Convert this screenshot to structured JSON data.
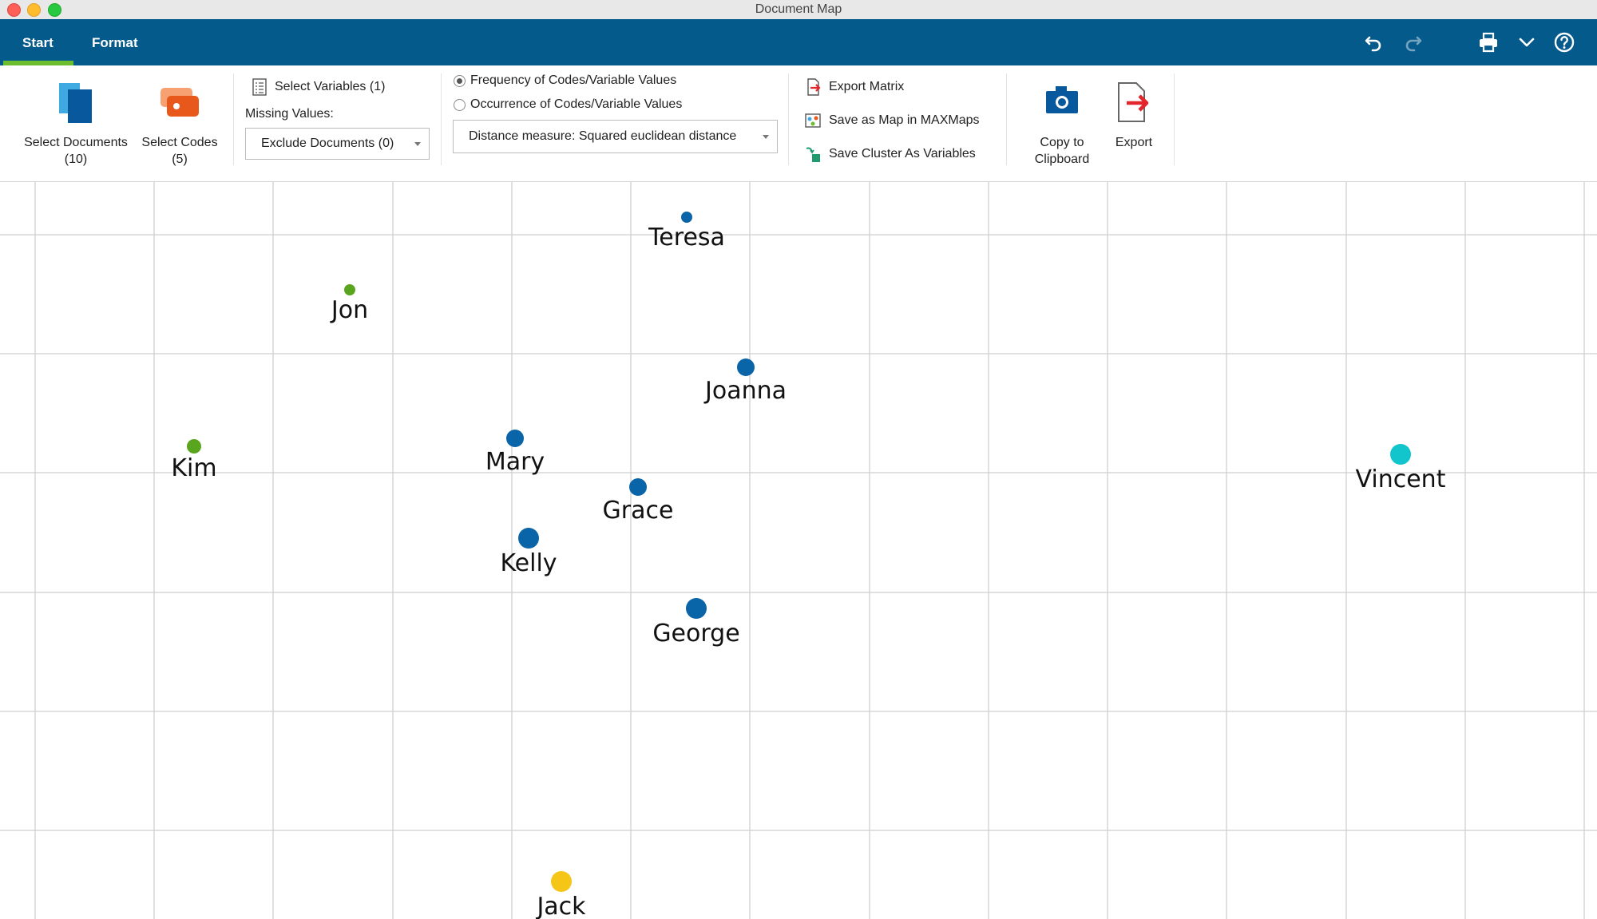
{
  "window": {
    "title": "Document Map"
  },
  "tabs": [
    {
      "label": "Start",
      "active": true
    },
    {
      "label": "Format",
      "active": false
    }
  ],
  "toolbar_icons": [
    "undo-icon",
    "redo-icon",
    "print-icon",
    "chevron-down-icon",
    "help-icon"
  ],
  "ribbon": {
    "select_documents": {
      "label": "Select Documents",
      "count": "(10)"
    },
    "select_codes": {
      "label": "Select Codes",
      "count": "(5)"
    },
    "select_variables": {
      "label": "Select Variables (1)"
    },
    "missing_values": {
      "label": "Missing Values:",
      "selected": "Exclude Documents (0)"
    },
    "radio_frequency": {
      "label": "Frequency of Codes/Variable Values",
      "checked": true
    },
    "radio_occurrence": {
      "label": "Occurrence of Codes/Variable Values",
      "checked": false
    },
    "distance_measure": {
      "selected": "Distance measure: Squared euclidean distance"
    },
    "export_matrix": {
      "label": "Export Matrix"
    },
    "save_map": {
      "label": "Save as Map in MAXMaps"
    },
    "save_cluster": {
      "label": "Save Cluster As Variables"
    },
    "copy_clipboard": {
      "label_line1": "Copy to",
      "label_line2": "Clipboard"
    },
    "export": {
      "label": "Export"
    }
  },
  "colors": {
    "ribbon_bar": "#055a8c",
    "tab_underline": "#6cbd2e",
    "cluster_blue": "#0a64a8",
    "cluster_green": "#5aa51e",
    "cluster_cyan": "#12c4cc",
    "cluster_yellow": "#f5c518"
  },
  "document_map": {
    "documents": [
      {
        "name": "Teresa",
        "cluster": "blue"
      },
      {
        "name": "Jon",
        "cluster": "green"
      },
      {
        "name": "Joanna",
        "cluster": "blue"
      },
      {
        "name": "Kim",
        "cluster": "green"
      },
      {
        "name": "Mary",
        "cluster": "blue"
      },
      {
        "name": "Vincent",
        "cluster": "cyan"
      },
      {
        "name": "Grace",
        "cluster": "blue"
      },
      {
        "name": "Kelly",
        "cluster": "blue"
      },
      {
        "name": "George",
        "cluster": "blue"
      },
      {
        "name": "Jack",
        "cluster": "yellow"
      }
    ]
  }
}
